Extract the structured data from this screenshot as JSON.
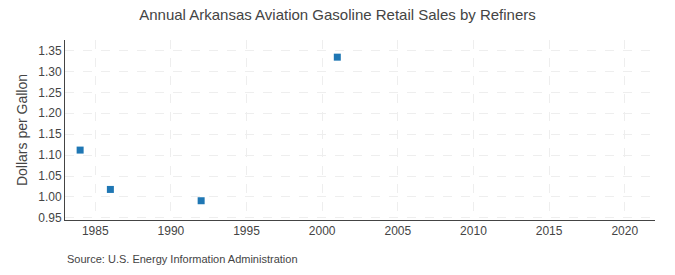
{
  "chart_data": {
    "type": "scatter",
    "title": "Annual Arkansas Aviation Gasoline Retail Sales by Refiners",
    "ylabel": "Dollars per Gallon",
    "source": "Source: U.S. Energy Information Administration",
    "x": [
      1984,
      1986,
      1992,
      2001
    ],
    "values": [
      1.112,
      1.018,
      0.991,
      1.334
    ],
    "marker": "square",
    "xlim": [
      1983,
      2022
    ],
    "ylim": [
      0.945,
      1.375
    ],
    "xticks": [
      1985,
      1990,
      1995,
      2000,
      2005,
      2010,
      2015,
      2020
    ],
    "yticks": [
      0.95,
      {
        "value": 1.0,
        "label": "1.00"
      },
      1.05,
      {
        "value": 1.1,
        "label": "1.10"
      },
      1.15,
      {
        "value": 1.2,
        "label": "1.20"
      },
      1.25,
      {
        "value": 1.3,
        "label": "1.30"
      },
      1.35
    ],
    "grid": true
  }
}
